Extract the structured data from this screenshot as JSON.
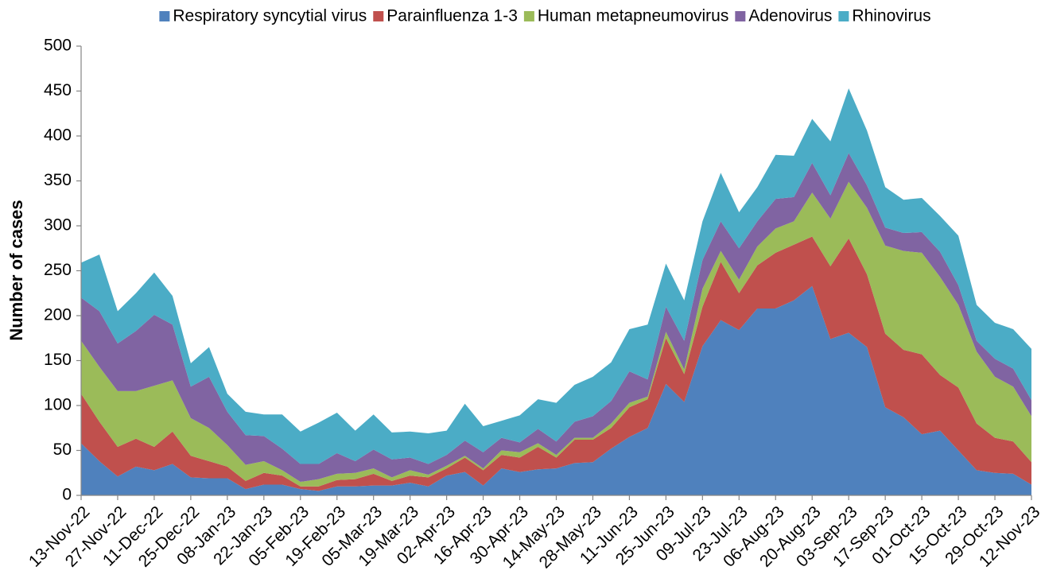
{
  "chart_data": {
    "type": "stacked_area",
    "y_label": "Number of cases",
    "categories": [
      "13-Nov-22",
      null,
      "27-Nov-22",
      null,
      "11-Dec-22",
      null,
      "25-Dec-22",
      null,
      "08-Jan-23",
      null,
      "22-Jan-23",
      null,
      "05-Feb-23",
      null,
      "19-Feb-23",
      null,
      "05-Mar-23",
      null,
      "19-Mar-23",
      null,
      "02-Apr-23",
      null,
      "16-Apr-23",
      null,
      "30-Apr-23",
      null,
      "14-May-23",
      null,
      "28-May-23",
      null,
      "11-Jun-23",
      null,
      "25-Jun-23",
      null,
      "09-Jul-23",
      null,
      "23-Jul-23",
      null,
      "06-Aug-23",
      null,
      "20-Aug-23",
      null,
      "03-Sep-23",
      null,
      "17-Sep-23",
      null,
      "01-Oct-23",
      null,
      "15-Oct-23",
      null,
      "29-Oct-23",
      null,
      "12-Nov-23"
    ],
    "series": [
      {
        "name": "Respiratory syncytial virus",
        "color": "#4f81bd",
        "values": [
          58,
          38,
          21,
          32,
          28,
          35,
          20,
          19,
          19,
          7,
          12,
          12,
          7,
          5,
          10,
          10,
          11,
          11,
          14,
          10,
          22,
          26,
          11,
          30,
          26,
          29,
          30,
          36,
          37,
          52,
          65,
          75,
          124,
          104,
          166,
          195,
          184,
          208,
          208,
          217,
          233,
          174,
          181,
          165,
          98,
          87,
          68,
          72,
          50,
          28,
          25,
          24,
          12
        ]
      },
      {
        "name": "Parainfluenza 1-3",
        "color": "#c0504d",
        "values": [
          55,
          44,
          33,
          31,
          26,
          36,
          24,
          19,
          13,
          9,
          13,
          10,
          3,
          5,
          7,
          8,
          13,
          5,
          8,
          10,
          8,
          16,
          17,
          15,
          16,
          25,
          12,
          26,
          25,
          23,
          33,
          32,
          51,
          31,
          44,
          65,
          41,
          48,
          62,
          62,
          55,
          81,
          105,
          81,
          82,
          75,
          89,
          62,
          70,
          52,
          39,
          36,
          25
        ]
      },
      {
        "name": "Human metapneumovirus",
        "color": "#9bbb59",
        "values": [
          59,
          61,
          62,
          53,
          68,
          57,
          42,
          37,
          24,
          18,
          13,
          6,
          5,
          8,
          7,
          7,
          6,
          4,
          6,
          3,
          3,
          2,
          2,
          5,
          6,
          4,
          3,
          2,
          2,
          5,
          5,
          3,
          7,
          5,
          20,
          12,
          15,
          21,
          27,
          26,
          49,
          53,
          63,
          74,
          98,
          110,
          113,
          109,
          92,
          80,
          68,
          61,
          51
        ]
      },
      {
        "name": "Adenovirus",
        "color": "#8064a2",
        "values": [
          48,
          62,
          53,
          67,
          79,
          62,
          35,
          57,
          37,
          33,
          28,
          24,
          20,
          17,
          23,
          13,
          21,
          20,
          14,
          12,
          12,
          17,
          18,
          14,
          11,
          16,
          15,
          18,
          24,
          25,
          35,
          19,
          28,
          32,
          32,
          33,
          35,
          28,
          33,
          27,
          33,
          26,
          32,
          25,
          20,
          20,
          23,
          28,
          22,
          12,
          20,
          20,
          18
        ]
      },
      {
        "name": "Rhinovirus",
        "color": "#4bacc6",
        "values": [
          39,
          63,
          36,
          42,
          47,
          32,
          26,
          33,
          20,
          26,
          24,
          38,
          36,
          46,
          45,
          34,
          39,
          30,
          29,
          34,
          27,
          41,
          29,
          19,
          30,
          33,
          43,
          41,
          44,
          43,
          47,
          61,
          48,
          45,
          43,
          54,
          40,
          38,
          49,
          46,
          49,
          60,
          72,
          61,
          45,
          37,
          38,
          40,
          55,
          40,
          40,
          44,
          57
        ]
      }
    ],
    "ylim": [
      0,
      500
    ],
    "yticks": [
      0,
      50,
      100,
      150,
      200,
      250,
      300,
      350,
      400,
      450,
      500
    ],
    "legend": "top",
    "grid": false
  }
}
